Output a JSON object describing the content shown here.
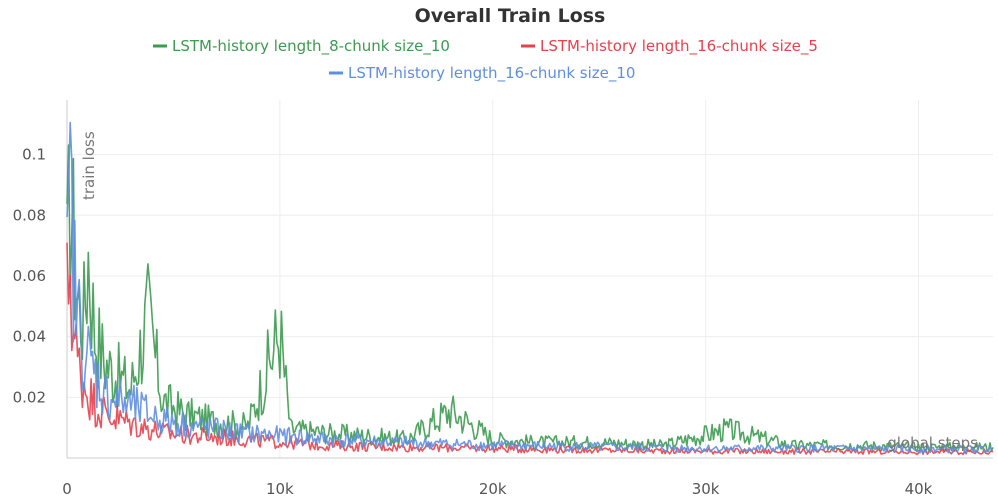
{
  "chart_data": {
    "type": "line",
    "title": "Overall Train Loss",
    "xlabel": "global steps",
    "ylabel": "train loss",
    "xlim": [
      0,
      43500
    ],
    "ylim": [
      0,
      0.118
    ],
    "x_ticks": [
      0,
      10000,
      20000,
      30000,
      40000
    ],
    "x_tick_labels": [
      "0",
      "10k",
      "20k",
      "30k",
      "40k"
    ],
    "y_ticks": [
      0.02,
      0.04,
      0.06,
      0.08,
      0.1
    ],
    "y_tick_labels": [
      "0.02",
      "0.04",
      "0.06",
      "0.08",
      "0.1"
    ],
    "grid": true,
    "legend_position": "top-center",
    "series": [
      {
        "name": "LSTM-history length_8-chunk size_10",
        "color": "#3d9a50",
        "values": [
          [
            0,
            0.06
          ],
          [
            150,
            0.085
          ],
          [
            300,
            0.07
          ],
          [
            500,
            0.05
          ],
          [
            800,
            0.045
          ],
          [
            1000,
            0.065
          ],
          [
            1300,
            0.04
          ],
          [
            1800,
            0.03
          ],
          [
            2500,
            0.025
          ],
          [
            3000,
            0.022
          ],
          [
            3800,
            0.045
          ],
          [
            4500,
            0.018
          ],
          [
            5500,
            0.014
          ],
          [
            6500,
            0.012
          ],
          [
            7500,
            0.011
          ],
          [
            8500,
            0.01
          ],
          [
            10000,
            0.04
          ],
          [
            10500,
            0.009
          ],
          [
            12000,
            0.008
          ],
          [
            14000,
            0.007
          ],
          [
            16000,
            0.006
          ],
          [
            18000,
            0.015
          ],
          [
            20000,
            0.006
          ],
          [
            22000,
            0.005
          ],
          [
            25000,
            0.005
          ],
          [
            28000,
            0.004
          ],
          [
            31000,
            0.009
          ],
          [
            34000,
            0.004
          ],
          [
            37000,
            0.004
          ],
          [
            40000,
            0.0035
          ],
          [
            43500,
            0.0035
          ]
        ]
      },
      {
        "name": "LSTM-history length_16-chunk size_5",
        "color": "#e8414d",
        "values": [
          [
            0,
            0.05
          ],
          [
            150,
            0.062
          ],
          [
            300,
            0.04
          ],
          [
            500,
            0.03
          ],
          [
            800,
            0.024
          ],
          [
            1200,
            0.018
          ],
          [
            1800,
            0.014
          ],
          [
            2500,
            0.012
          ],
          [
            3500,
            0.01
          ],
          [
            4500,
            0.008
          ],
          [
            6000,
            0.007
          ],
          [
            8000,
            0.006
          ],
          [
            10000,
            0.005
          ],
          [
            12000,
            0.004
          ],
          [
            15000,
            0.0035
          ],
          [
            20000,
            0.003
          ],
          [
            25000,
            0.0025
          ],
          [
            30000,
            0.0022
          ],
          [
            35000,
            0.002
          ],
          [
            40000,
            0.002
          ],
          [
            43500,
            0.002
          ]
        ]
      },
      {
        "name": "LSTM-history length_16-chunk size_10",
        "color": "#5f8fe0",
        "values": [
          [
            0,
            0.055
          ],
          [
            150,
            0.086
          ],
          [
            300,
            0.06
          ],
          [
            500,
            0.045
          ],
          [
            800,
            0.035
          ],
          [
            1200,
            0.028
          ],
          [
            1800,
            0.02
          ],
          [
            2500,
            0.018
          ],
          [
            3500,
            0.015
          ],
          [
            4500,
            0.012
          ],
          [
            6000,
            0.01
          ],
          [
            8000,
            0.008
          ],
          [
            10000,
            0.007
          ],
          [
            12000,
            0.006
          ],
          [
            15000,
            0.005
          ],
          [
            20000,
            0.004
          ],
          [
            25000,
            0.0035
          ],
          [
            30000,
            0.003
          ],
          [
            35000,
            0.003
          ],
          [
            40000,
            0.0028
          ],
          [
            43500,
            0.0028
          ]
        ]
      }
    ]
  }
}
